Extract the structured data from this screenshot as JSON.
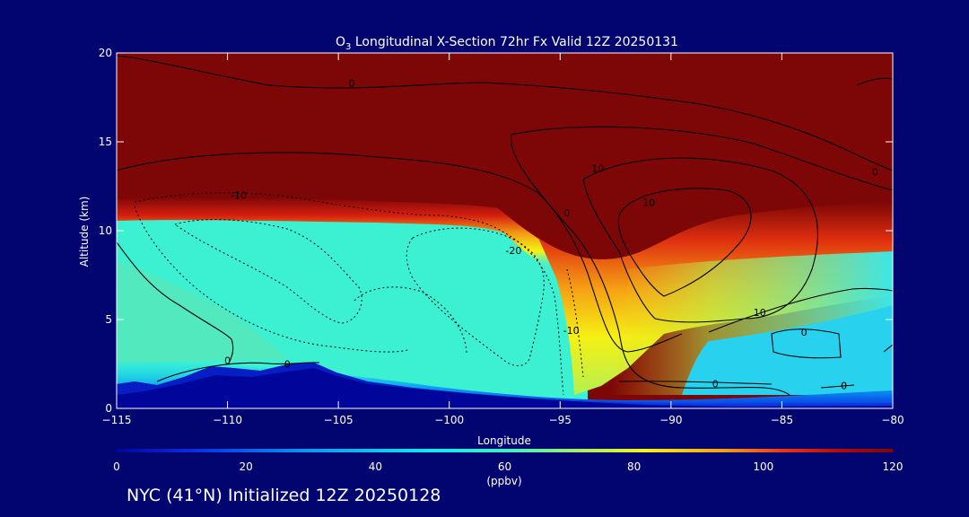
{
  "chart_data": {
    "type": "heatmap",
    "title_prefix": "O",
    "title_sub": "3",
    "title_rest": " Longitudinal X-Section 72hr  Fx Valid 12Z 20250131",
    "xlabel": "Longitude",
    "ylabel": "Altitude (km)",
    "xlim": [
      -115,
      -80
    ],
    "ylim": [
      0,
      20
    ],
    "x_ticks": [
      -115,
      -110,
      -105,
      -100,
      -95,
      -90,
      -85,
      -80
    ],
    "x_tick_labels": [
      "−115",
      "−110",
      "−105",
      "−100",
      "−95",
      "−90",
      "−85",
      "−80"
    ],
    "y_ticks": [
      0,
      5,
      10,
      15,
      20
    ],
    "y_tick_labels": [
      "0",
      "5",
      "10",
      "15",
      "20"
    ],
    "colorbar": {
      "min": 0,
      "max": 120,
      "ticks": [
        0,
        20,
        40,
        60,
        80,
        100,
        120
      ],
      "tick_labels": [
        "0",
        "20",
        "40",
        "60",
        "80",
        "100",
        "120"
      ],
      "unit": "(ppbv)",
      "colors": [
        "#02059a",
        "#0a2ee0",
        "#0a9af2",
        "#14e6f0",
        "#3cf0c8",
        "#aaf060",
        "#f5f514",
        "#f5a014",
        "#f03214",
        "#b40a0a",
        "#7d0606"
      ]
    },
    "contour_labels": [
      {
        "text": "0",
        "lon": -104.4,
        "alt": 18.3
      },
      {
        "text": "-10",
        "lon": -109.5,
        "alt": 12.0
      },
      {
        "text": "-20",
        "lon": -97.1,
        "alt": 8.9
      },
      {
        "text": "-10",
        "lon": -94.5,
        "alt": 4.4
      },
      {
        "text": "0",
        "lon": -110.0,
        "alt": 2.7
      },
      {
        "text": "0",
        "lon": -107.3,
        "alt": 2.5
      },
      {
        "text": "10",
        "lon": -93.3,
        "alt": 13.5
      },
      {
        "text": "10",
        "lon": -91.0,
        "alt": 11.6
      },
      {
        "text": "10",
        "lon": -86.0,
        "alt": 5.4
      },
      {
        "text": "0",
        "lon": -84.0,
        "alt": 4.3
      },
      {
        "text": "0",
        "lon": -88.0,
        "alt": 1.4
      },
      {
        "text": "0",
        "lon": -82.2,
        "alt": 1.3
      },
      {
        "text": "0",
        "lon": -80.8,
        "alt": 13.3
      },
      {
        "text": "0",
        "lon": -94.7,
        "alt": 11.0
      }
    ]
  },
  "footer": {
    "label": "NYC (41°N) Initialized 12Z 20250128"
  }
}
